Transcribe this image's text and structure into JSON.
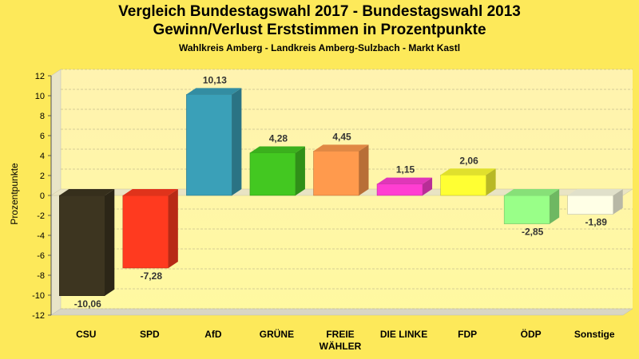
{
  "chart_data": {
    "type": "bar",
    "title": "Vergleich Bundestagswahl 2017 - Bundestagswahl 2013",
    "subtitle": "Gewinn/Verlust Erststimmen in Prozentpunkte",
    "subsubtitle": "Wahlkreis Amberg - Landkreis Amberg-Sulzbach - Markt Kastl",
    "ylabel": "Prozentpunkte",
    "ylim": [
      -12,
      12
    ],
    "yticks": [
      "12",
      "10",
      "8",
      "6",
      "4",
      "2",
      "0",
      "-2",
      "-4",
      "-6",
      "-8",
      "-10",
      "-12"
    ],
    "categories": [
      {
        "label": "CSU",
        "label2": ""
      },
      {
        "label": "SPD",
        "label2": ""
      },
      {
        "label": "AfD",
        "label2": ""
      },
      {
        "label": "GRÜNE",
        "label2": ""
      },
      {
        "label": "FREIE",
        "label2": "WÄHLER"
      },
      {
        "label": "DIE LINKE",
        "label2": ""
      },
      {
        "label": "FDP",
        "label2": ""
      },
      {
        "label": "ÖDP",
        "label2": ""
      },
      {
        "label": "Sonstige",
        "label2": ""
      }
    ],
    "values": [
      -10.06,
      -7.28,
      10.13,
      4.28,
      4.45,
      1.15,
      2.06,
      -2.85,
      -1.89
    ],
    "value_labels": [
      "-10,06",
      "-7,28",
      "10,13",
      "4,28",
      "4,45",
      "1,15",
      "2,06",
      "-2,85",
      "-1,89"
    ],
    "colors": [
      "#3d3520",
      "#ff3a1f",
      "#3aa0b8",
      "#43c821",
      "#ff9a4d",
      "#ff3ed2",
      "#ffff33",
      "#99ff88",
      "#ffffe6"
    ],
    "grid": true,
    "legend": "none"
  }
}
